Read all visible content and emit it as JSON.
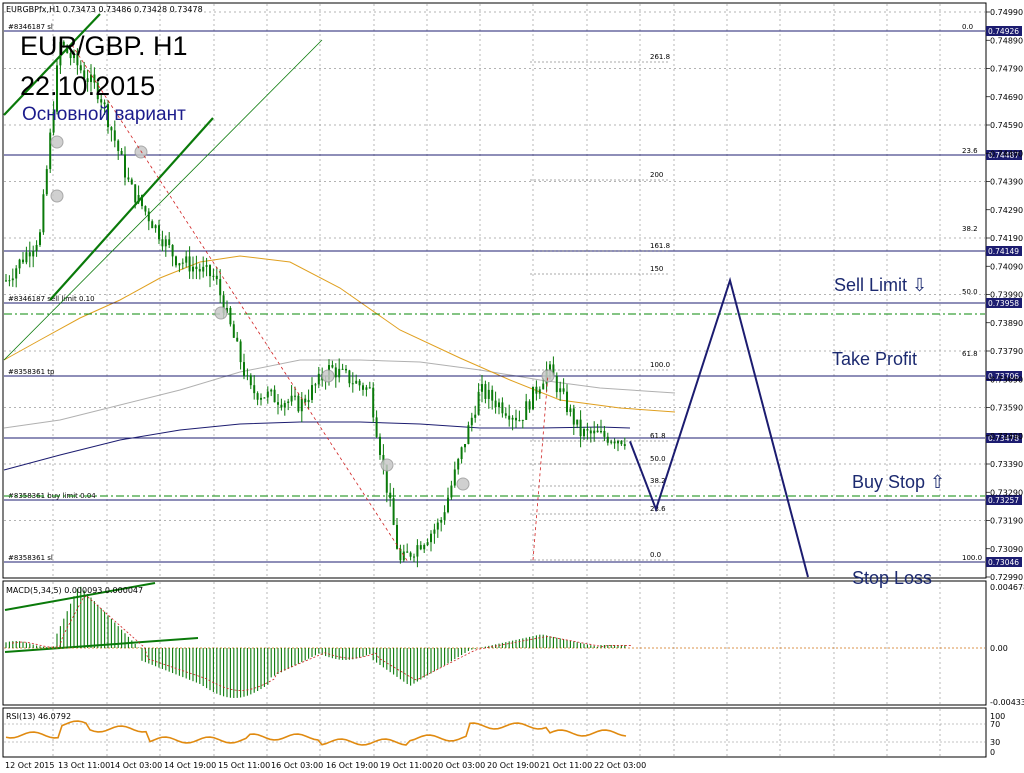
{
  "window": {
    "symbol_header": "EURGBPfx,H1  0.73473 0.73486 0.73428 0.73478"
  },
  "annotation": {
    "title_line1": "EUR/GBP. H1",
    "title_line2": "22.10.2015",
    "subtitle": "Основной вариант",
    "sell_limit": "Sell Limit  ⇩",
    "take_profit": "Take Profit",
    "buy_stop": "Buy Stop  ⇧",
    "stop_loss": "Stop Loss"
  },
  "colors": {
    "background": "#ffffff",
    "grid": "#9a9a9a",
    "candle": "#0a7a0a",
    "ma_fast": "#e0a020",
    "ma_mid": "#b0b0b0",
    "ma_slow": "#1c1c70",
    "trendline": "#0a7a0a",
    "level_line": "#1c1c70",
    "order_dash": "#0a8a0a",
    "fib_red": "#d02020",
    "forecast": "#1c1c70",
    "price_box": "#1c1c70",
    "macd_hist": "#0a7a0a",
    "macd_signal": "#d02020",
    "rsi": "#e08a10"
  },
  "levels": [
    {
      "label": "",
      "price": "0.74926"
    },
    {
      "label": "",
      "price": "0.74487"
    },
    {
      "label": "",
      "price": "0.74149"
    },
    {
      "label": "#8346187 sell limit 0.10",
      "price": "0.73958"
    },
    {
      "label": "#8358361 tp",
      "price": "0.73706"
    },
    {
      "label": "",
      "price": "0.73478"
    },
    {
      "label": "#8358361 buy limit 0.04",
      "price": "0.73257"
    },
    {
      "label": "#8358361 sl",
      "price": "0.73046"
    }
  ],
  "top_order_label": "#8346187 sl",
  "fib_right": [
    "0.0",
    "23.6",
    "38.2",
    "50.0",
    "61.8",
    "100.0"
  ],
  "fib_mid": [
    "261.8",
    "200",
    "161.8",
    "150",
    "100.0",
    "61.8",
    "50.0",
    "38.2",
    "23.6",
    "0.0"
  ],
  "macd": {
    "title": "MACD(5,34,5)  0.000093 0.000047",
    "ticks": [
      "0.004678",
      "0.00",
      "-0.004334"
    ]
  },
  "rsi": {
    "title": "RSI(13) 46.0792",
    "ticks": [
      "100",
      "70",
      "30",
      "0"
    ]
  },
  "chart_data": {
    "type": "candlestick",
    "title": "EUR/GBP. H1",
    "timeframe": "H1",
    "y_axis_ticks": [
      "0.74990",
      "0.74890",
      "0.74790",
      "0.74690",
      "0.74590",
      "0.74490",
      "0.74390",
      "0.74290",
      "0.74190",
      "0.74090",
      "0.73990",
      "0.73890",
      "0.73790",
      "0.73690",
      "0.73590",
      "0.73490",
      "0.73390",
      "0.73290",
      "0.73190",
      "0.73090",
      "0.72990"
    ],
    "ylim": [
      0.7295,
      0.7504
    ],
    "x_axis_ticks": [
      "12 Oct 2015",
      "13 Oct 11:00",
      "14 Oct 03:00",
      "14 Oct 19:00",
      "15 Oct 11:00",
      "16 Oct 03:00",
      "16 Oct 19:00",
      "19 Oct 11:00",
      "20 Oct 03:00",
      "20 Oct 19:00",
      "21 Oct 11:00",
      "22 Oct 03:00"
    ],
    "key_prices": [
      {
        "anchor": "start",
        "price": 0.7404
      },
      {
        "anchor": "peak",
        "price": 0.7488
      },
      {
        "anchor": "mid",
        "price": 0.7437
      },
      {
        "anchor": "drop",
        "price": 0.7365
      },
      {
        "anchor": "bounce",
        "price": 0.7373
      },
      {
        "anchor": "low",
        "price": 0.7304
      },
      {
        "anchor": "rise",
        "price": 0.7365
      },
      {
        "anchor": "last",
        "price": 0.73478
      }
    ],
    "forecast_path": [
      {
        "step": "now",
        "price": 0.7347
      },
      {
        "step": "dip",
        "price": 0.7323
      },
      {
        "step": "sell-limit",
        "price": 0.7404
      },
      {
        "step": "stop-loss",
        "price": 0.7299
      }
    ]
  }
}
